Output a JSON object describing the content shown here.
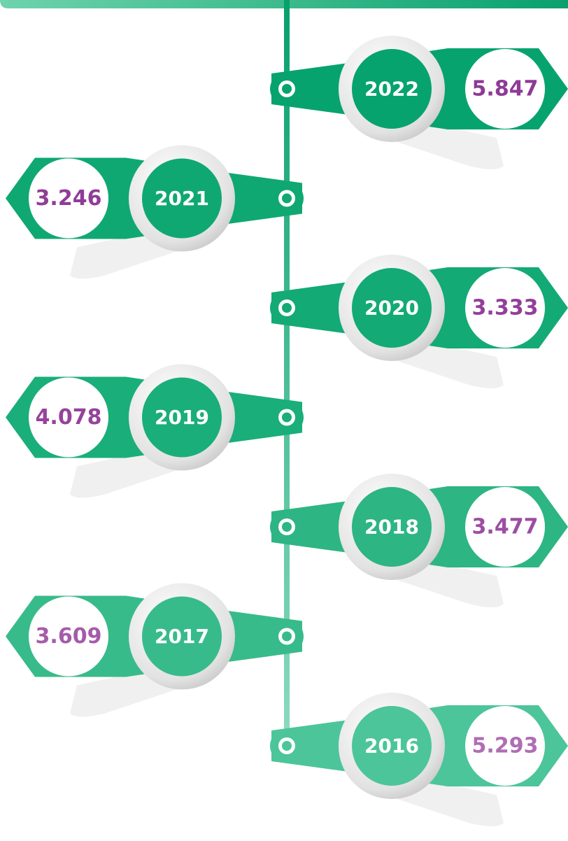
{
  "timeline": {
    "items": [
      {
        "year": "2022",
        "value": "5.847"
      },
      {
        "year": "2021",
        "value": "3.246"
      },
      {
        "year": "2020",
        "value": "3.333"
      },
      {
        "year": "2019",
        "value": "4.078"
      },
      {
        "year": "2018",
        "value": "3.477"
      },
      {
        "year": "2017",
        "value": "3.609"
      },
      {
        "year": "2016",
        "value": "5.293"
      }
    ]
  }
}
